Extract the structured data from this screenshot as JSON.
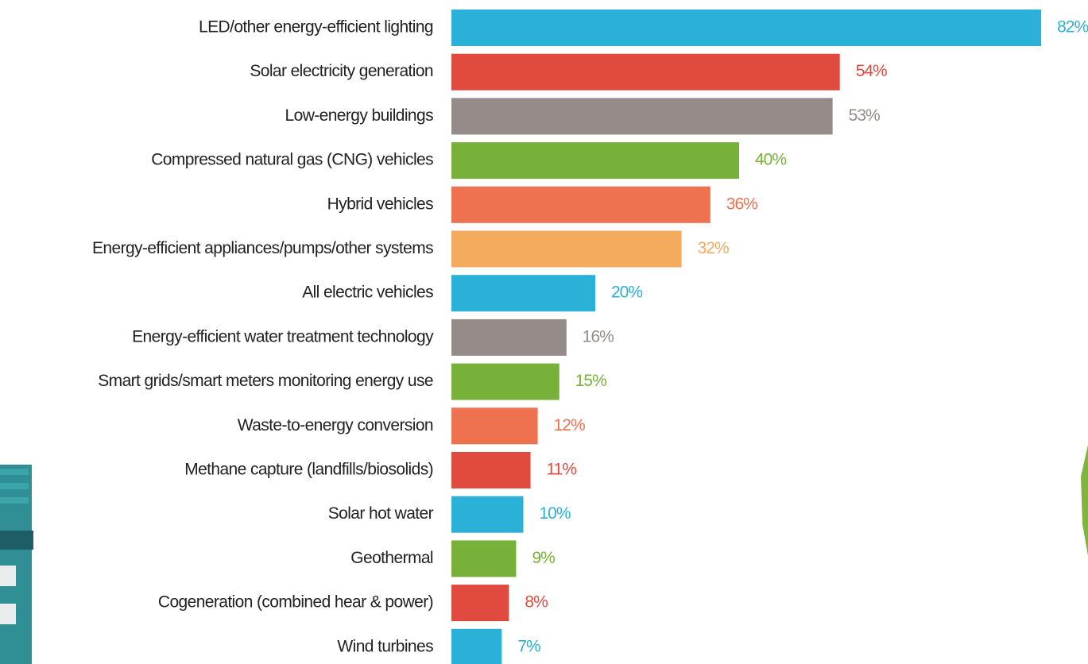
{
  "chart_data": {
    "type": "bar",
    "orientation": "horizontal",
    "categories": [
      "LED/other energy-efficient lighting",
      "Solar electricity generation",
      "Low-energy buildings",
      "Compressed natural gas (CNG) vehicles",
      "Hybrid vehicles",
      "Energy-efficient appliances/pumps/other systems",
      "All electric vehicles",
      "Energy-efficient water treatment technology",
      "Smart grids/smart meters monitoring energy use",
      "Waste-to-energy conversion",
      "Methane capture (landfills/biosolids)",
      "Solar hot water",
      "Geothermal",
      "Cogeneration (combined hear & power)",
      "Wind turbines"
    ],
    "values": [
      82,
      54,
      53,
      40,
      36,
      32,
      20,
      16,
      15,
      12,
      11,
      10,
      9,
      8,
      7
    ],
    "value_labels": [
      "82%",
      "54%",
      "53%",
      "40%",
      "36%",
      "32%",
      "20%",
      "16%",
      "15%",
      "12%",
      "11%",
      "10%",
      "9%",
      "8%",
      "7%"
    ],
    "colors": [
      "#2bb0d7",
      "#e04a3f",
      "#958b88",
      "#78b13a",
      "#ee7150",
      "#f5ab5d",
      "#2bb0d7",
      "#958b88",
      "#78b13a",
      "#ee7150",
      "#e04a3f",
      "#2bb0d7",
      "#78b13a",
      "#e04a3f",
      "#2bb0d7"
    ]
  }
}
